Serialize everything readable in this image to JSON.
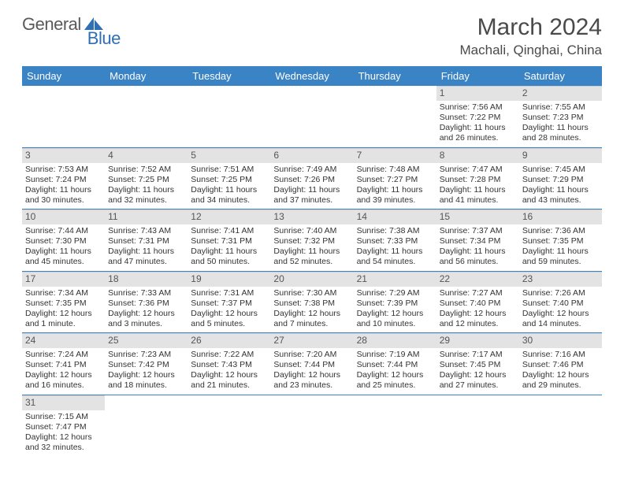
{
  "logo": {
    "text1": "General",
    "text2": "Blue"
  },
  "title": "March 2024",
  "location": "Machali, Qinghai, China",
  "colors": {
    "header_bg": "#3a83c5",
    "header_text": "#ffffff",
    "daynum_bg": "#e3e3e3",
    "rule": "#3a83c5",
    "logo_gray": "#5a5a5a",
    "logo_blue": "#2f6fb3"
  },
  "weekdays": [
    "Sunday",
    "Monday",
    "Tuesday",
    "Wednesday",
    "Thursday",
    "Friday",
    "Saturday"
  ],
  "weeks": [
    [
      null,
      null,
      null,
      null,
      null,
      {
        "n": "1",
        "sunrise": "Sunrise: 7:56 AM",
        "sunset": "Sunset: 7:22 PM",
        "daylight": "Daylight: 11 hours and 26 minutes."
      },
      {
        "n": "2",
        "sunrise": "Sunrise: 7:55 AM",
        "sunset": "Sunset: 7:23 PM",
        "daylight": "Daylight: 11 hours and 28 minutes."
      }
    ],
    [
      {
        "n": "3",
        "sunrise": "Sunrise: 7:53 AM",
        "sunset": "Sunset: 7:24 PM",
        "daylight": "Daylight: 11 hours and 30 minutes."
      },
      {
        "n": "4",
        "sunrise": "Sunrise: 7:52 AM",
        "sunset": "Sunset: 7:25 PM",
        "daylight": "Daylight: 11 hours and 32 minutes."
      },
      {
        "n": "5",
        "sunrise": "Sunrise: 7:51 AM",
        "sunset": "Sunset: 7:25 PM",
        "daylight": "Daylight: 11 hours and 34 minutes."
      },
      {
        "n": "6",
        "sunrise": "Sunrise: 7:49 AM",
        "sunset": "Sunset: 7:26 PM",
        "daylight": "Daylight: 11 hours and 37 minutes."
      },
      {
        "n": "7",
        "sunrise": "Sunrise: 7:48 AM",
        "sunset": "Sunset: 7:27 PM",
        "daylight": "Daylight: 11 hours and 39 minutes."
      },
      {
        "n": "8",
        "sunrise": "Sunrise: 7:47 AM",
        "sunset": "Sunset: 7:28 PM",
        "daylight": "Daylight: 11 hours and 41 minutes."
      },
      {
        "n": "9",
        "sunrise": "Sunrise: 7:45 AM",
        "sunset": "Sunset: 7:29 PM",
        "daylight": "Daylight: 11 hours and 43 minutes."
      }
    ],
    [
      {
        "n": "10",
        "sunrise": "Sunrise: 7:44 AM",
        "sunset": "Sunset: 7:30 PM",
        "daylight": "Daylight: 11 hours and 45 minutes."
      },
      {
        "n": "11",
        "sunrise": "Sunrise: 7:43 AM",
        "sunset": "Sunset: 7:31 PM",
        "daylight": "Daylight: 11 hours and 47 minutes."
      },
      {
        "n": "12",
        "sunrise": "Sunrise: 7:41 AM",
        "sunset": "Sunset: 7:31 PM",
        "daylight": "Daylight: 11 hours and 50 minutes."
      },
      {
        "n": "13",
        "sunrise": "Sunrise: 7:40 AM",
        "sunset": "Sunset: 7:32 PM",
        "daylight": "Daylight: 11 hours and 52 minutes."
      },
      {
        "n": "14",
        "sunrise": "Sunrise: 7:38 AM",
        "sunset": "Sunset: 7:33 PM",
        "daylight": "Daylight: 11 hours and 54 minutes."
      },
      {
        "n": "15",
        "sunrise": "Sunrise: 7:37 AM",
        "sunset": "Sunset: 7:34 PM",
        "daylight": "Daylight: 11 hours and 56 minutes."
      },
      {
        "n": "16",
        "sunrise": "Sunrise: 7:36 AM",
        "sunset": "Sunset: 7:35 PM",
        "daylight": "Daylight: 11 hours and 59 minutes."
      }
    ],
    [
      {
        "n": "17",
        "sunrise": "Sunrise: 7:34 AM",
        "sunset": "Sunset: 7:35 PM",
        "daylight": "Daylight: 12 hours and 1 minute."
      },
      {
        "n": "18",
        "sunrise": "Sunrise: 7:33 AM",
        "sunset": "Sunset: 7:36 PM",
        "daylight": "Daylight: 12 hours and 3 minutes."
      },
      {
        "n": "19",
        "sunrise": "Sunrise: 7:31 AM",
        "sunset": "Sunset: 7:37 PM",
        "daylight": "Daylight: 12 hours and 5 minutes."
      },
      {
        "n": "20",
        "sunrise": "Sunrise: 7:30 AM",
        "sunset": "Sunset: 7:38 PM",
        "daylight": "Daylight: 12 hours and 7 minutes."
      },
      {
        "n": "21",
        "sunrise": "Sunrise: 7:29 AM",
        "sunset": "Sunset: 7:39 PM",
        "daylight": "Daylight: 12 hours and 10 minutes."
      },
      {
        "n": "22",
        "sunrise": "Sunrise: 7:27 AM",
        "sunset": "Sunset: 7:40 PM",
        "daylight": "Daylight: 12 hours and 12 minutes."
      },
      {
        "n": "23",
        "sunrise": "Sunrise: 7:26 AM",
        "sunset": "Sunset: 7:40 PM",
        "daylight": "Daylight: 12 hours and 14 minutes."
      }
    ],
    [
      {
        "n": "24",
        "sunrise": "Sunrise: 7:24 AM",
        "sunset": "Sunset: 7:41 PM",
        "daylight": "Daylight: 12 hours and 16 minutes."
      },
      {
        "n": "25",
        "sunrise": "Sunrise: 7:23 AM",
        "sunset": "Sunset: 7:42 PM",
        "daylight": "Daylight: 12 hours and 18 minutes."
      },
      {
        "n": "26",
        "sunrise": "Sunrise: 7:22 AM",
        "sunset": "Sunset: 7:43 PM",
        "daylight": "Daylight: 12 hours and 21 minutes."
      },
      {
        "n": "27",
        "sunrise": "Sunrise: 7:20 AM",
        "sunset": "Sunset: 7:44 PM",
        "daylight": "Daylight: 12 hours and 23 minutes."
      },
      {
        "n": "28",
        "sunrise": "Sunrise: 7:19 AM",
        "sunset": "Sunset: 7:44 PM",
        "daylight": "Daylight: 12 hours and 25 minutes."
      },
      {
        "n": "29",
        "sunrise": "Sunrise: 7:17 AM",
        "sunset": "Sunset: 7:45 PM",
        "daylight": "Daylight: 12 hours and 27 minutes."
      },
      {
        "n": "30",
        "sunrise": "Sunrise: 7:16 AM",
        "sunset": "Sunset: 7:46 PM",
        "daylight": "Daylight: 12 hours and 29 minutes."
      }
    ],
    [
      {
        "n": "31",
        "sunrise": "Sunrise: 7:15 AM",
        "sunset": "Sunset: 7:47 PM",
        "daylight": "Daylight: 12 hours and 32 minutes."
      },
      null,
      null,
      null,
      null,
      null,
      null
    ]
  ]
}
